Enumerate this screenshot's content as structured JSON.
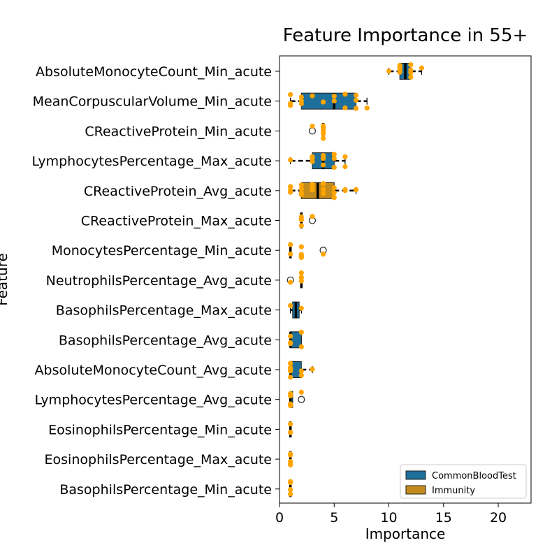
{
  "chart_data": {
    "type": "box",
    "title": "Feature Importance in 55+",
    "xlabel": "Importance",
    "ylabel": "Feature",
    "xlim": [
      0,
      23
    ],
    "xticks": [
      0,
      5,
      10,
      15,
      20
    ],
    "grid": false,
    "legend_position": "lower-right",
    "legend": [
      {
        "name": "CommonBloodTest",
        "color": "#1f6f9c"
      },
      {
        "name": "Immunity",
        "color": "#c48a1c"
      }
    ],
    "point_color": "#ffa500",
    "features": [
      {
        "name": "AbsoluteMonocyteCount_Min_acute",
        "group": "CommonBloodTest",
        "box": {
          "whislo": 10,
          "q1": 11,
          "med": 11.5,
          "q3": 12,
          "whishi": 13
        },
        "outliers": [],
        "points": [
          10,
          11,
          11,
          11,
          11,
          11,
          12,
          12,
          12,
          12,
          13
        ]
      },
      {
        "name": "MeanCorpuscularVolume_Min_acute",
        "group": "CommonBloodTest",
        "box": {
          "whislo": 1,
          "q1": 2,
          "med": 5,
          "q3": 7,
          "whishi": 8
        },
        "outliers": [],
        "points": [
          1,
          1,
          1,
          2,
          2,
          2,
          3,
          4,
          5,
          5,
          6,
          6,
          7,
          7,
          7,
          8
        ]
      },
      {
        "name": "CReactiveProtein_Min_acute",
        "group": "Immunity",
        "box": {
          "whislo": 4,
          "q1": 4,
          "med": 4,
          "q3": 4,
          "whishi": 4
        },
        "outliers": [
          3
        ],
        "points": [
          3,
          4,
          4,
          4,
          4,
          4,
          4
        ]
      },
      {
        "name": "LymphocytesPercentage_Max_acute",
        "group": "CommonBloodTest",
        "box": {
          "whislo": 1,
          "q1": 3,
          "med": 4,
          "q3": 5,
          "whishi": 6
        },
        "outliers": [],
        "points": [
          1,
          3,
          3,
          3,
          4,
          4,
          4,
          5,
          5,
          5,
          6,
          6
        ]
      },
      {
        "name": "CReactiveProtein_Avg_acute",
        "group": "Immunity",
        "box": {
          "whislo": 1,
          "q1": 2,
          "med": 3.5,
          "q3": 5,
          "whishi": 7
        },
        "outliers": [],
        "points": [
          1,
          1,
          1,
          2,
          2,
          2,
          2,
          3,
          3,
          3,
          4,
          4,
          4,
          5,
          5,
          5,
          6,
          6,
          7
        ]
      },
      {
        "name": "CReactiveProtein_Max_acute",
        "group": "Immunity",
        "box": {
          "whislo": 2,
          "q1": 2,
          "med": 2,
          "q3": 2,
          "whishi": 2
        },
        "outliers": [
          3
        ],
        "points": [
          2,
          2,
          2,
          2,
          3
        ]
      },
      {
        "name": "MonocytesPercentage_Min_acute",
        "group": "CommonBloodTest",
        "box": {
          "whislo": 1,
          "q1": 1,
          "med": 1,
          "q3": 1,
          "whishi": 1
        },
        "outliers": [
          4
        ],
        "points": [
          1,
          1,
          2,
          2,
          2,
          2,
          2,
          2,
          4
        ]
      },
      {
        "name": "NeutrophilsPercentage_Avg_acute",
        "group": "CommonBloodTest",
        "box": {
          "whislo": 2,
          "q1": 2,
          "med": 2,
          "q3": 2,
          "whishi": 2
        },
        "outliers": [
          1
        ],
        "points": [
          1,
          2,
          2,
          2,
          2
        ]
      },
      {
        "name": "BasophilsPercentage_Max_acute",
        "group": "CommonBloodTest",
        "box": {
          "whislo": 1,
          "q1": 1.2,
          "med": 1.5,
          "q3": 1.8,
          "whishi": 2
        },
        "outliers": [],
        "points": [
          1,
          2
        ]
      },
      {
        "name": "BasophilsPercentage_Avg_acute",
        "group": "CommonBloodTest",
        "box": {
          "whislo": 1,
          "q1": 1,
          "med": 1,
          "q3": 2,
          "whishi": 2
        },
        "outliers": [],
        "points": [
          1,
          1,
          1,
          2,
          2
        ]
      },
      {
        "name": "AbsoluteMonocyteCount_Avg_acute",
        "group": "CommonBloodTest",
        "box": {
          "whislo": 1,
          "q1": 1,
          "med": 1,
          "q3": 2,
          "whishi": 3
        },
        "outliers": [],
        "points": [
          1,
          1,
          1,
          1,
          1,
          1,
          2,
          2,
          3
        ]
      },
      {
        "name": "LymphocytesPercentage_Avg_acute",
        "group": "CommonBloodTest",
        "box": {
          "whislo": 1,
          "q1": 1,
          "med": 1,
          "q3": 1.2,
          "whishi": 1.2
        },
        "outliers": [
          2
        ],
        "points": [
          1,
          1,
          1,
          1,
          2
        ]
      },
      {
        "name": "EosinophilsPercentage_Min_acute",
        "group": "CommonBloodTest",
        "box": {
          "whislo": 1,
          "q1": 1,
          "med": 1,
          "q3": 1,
          "whishi": 1
        },
        "outliers": [],
        "points": [
          1,
          1,
          1
        ]
      },
      {
        "name": "EosinophilsPercentage_Max_acute",
        "group": "CommonBloodTest",
        "box": {
          "whislo": 1,
          "q1": 1,
          "med": 1,
          "q3": 1,
          "whishi": 1
        },
        "outliers": [],
        "points": [
          1,
          1,
          1,
          1,
          1
        ]
      },
      {
        "name": "BasophilsPercentage_Min_acute",
        "group": "CommonBloodTest",
        "box": {
          "whislo": 1,
          "q1": 1,
          "med": 1,
          "q3": 1,
          "whishi": 1
        },
        "outliers": [],
        "points": [
          1,
          1,
          1,
          1,
          1
        ]
      }
    ]
  }
}
